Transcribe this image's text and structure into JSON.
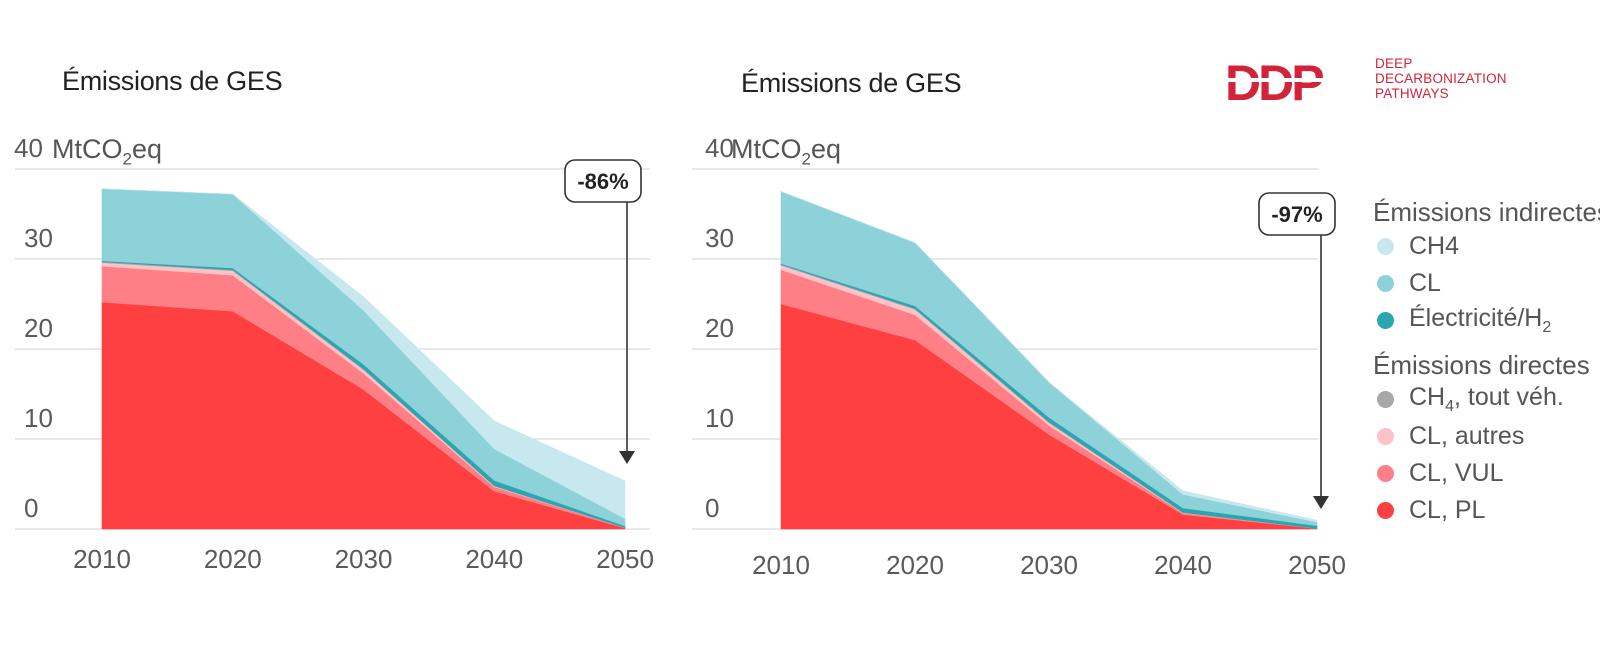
{
  "logo": {
    "mark": "DDP",
    "lines": [
      "DEEP",
      "DECARBONIZATION",
      "PATHWAYS"
    ]
  },
  "legend": {
    "indirect_title": "Émissions indirectes",
    "indirect": [
      {
        "key": "ind_ch4",
        "label": "CH4",
        "color": "#c6e8ee"
      },
      {
        "key": "ind_cl",
        "label": "CL",
        "color": "#8dd1d9"
      },
      {
        "key": "ind_elec",
        "label_main": "Électricité/H",
        "label_sub": "2",
        "color": "#2aa6b0"
      }
    ],
    "direct_title": "Émissions directes",
    "direct": [
      {
        "key": "dir_ch4",
        "label_main": "CH",
        "label_sub": "4",
        "label_rest": ", tout véh.",
        "color": "#a8a8a8"
      },
      {
        "key": "dir_cl_autres",
        "label": "CL, autres",
        "color": "#ffc2c6"
      },
      {
        "key": "dir_cl_vul",
        "label": "CL, VUL",
        "color": "#ff7f86"
      },
      {
        "key": "dir_cl_pl",
        "label": "CL, PL",
        "color": "#ff4040"
      }
    ]
  },
  "chart_data": [
    {
      "type": "area",
      "stacked": true,
      "title": "Émissions de GES",
      "unit_main": "MtCO",
      "unit_sub": "2",
      "unit_rest": "eq",
      "ylim": [
        0,
        40
      ],
      "y_ticks": [
        "0",
        "10",
        "20",
        "30",
        "40"
      ],
      "x": [
        2010,
        2020,
        2030,
        2040,
        2050
      ],
      "x_labels": [
        "2010",
        "2020",
        "2030",
        "2040",
        "2050"
      ],
      "series": [
        {
          "name": "CL, PL",
          "key": "dir_cl_pl",
          "values": [
            25.2,
            24.2,
            15.5,
            4.2,
            0.1
          ]
        },
        {
          "name": "CL, VUL",
          "key": "dir_cl_vul",
          "values": [
            4.0,
            4.0,
            1.8,
            0.5,
            0.05
          ]
        },
        {
          "name": "CL, autres",
          "key": "dir_cl_autres",
          "values": [
            0.4,
            0.5,
            0.4,
            0.1,
            0.0
          ]
        },
        {
          "name": "CH4, tout véh.",
          "key": "dir_ch4",
          "values": [
            0.1,
            0.1,
            0.1,
            0.0,
            0.0
          ]
        },
        {
          "name": "Électricité/H2",
          "key": "ind_elec",
          "values": [
            0.1,
            0.2,
            0.5,
            0.6,
            0.2
          ]
        },
        {
          "name": "CL",
          "key": "ind_cl",
          "values": [
            8.0,
            8.2,
            6.0,
            3.5,
            0.8
          ]
        },
        {
          "name": "CH4",
          "key": "ind_ch4",
          "values": [
            0.0,
            0.0,
            1.5,
            3.1,
            4.2
          ]
        }
      ],
      "callout": "-86%"
    },
    {
      "type": "area",
      "stacked": true,
      "title": "Émissions de GES",
      "unit_main": "MtCO",
      "unit_sub": "2",
      "unit_rest": "eq",
      "ylim": [
        0,
        40
      ],
      "y_ticks": [
        "0",
        "10",
        "20",
        "30",
        "40"
      ],
      "x": [
        2010,
        2020,
        2030,
        2040,
        2050
      ],
      "x_labels": [
        "2010",
        "2020",
        "2030",
        "2040",
        "2050"
      ],
      "series": [
        {
          "name": "CL, PL",
          "key": "dir_cl_pl",
          "values": [
            25.0,
            21.0,
            10.5,
            1.6,
            0.05
          ]
        },
        {
          "name": "CL, VUL",
          "key": "dir_cl_vul",
          "values": [
            3.8,
            2.8,
            1.0,
            0.2,
            0.02
          ]
        },
        {
          "name": "CL, autres",
          "key": "dir_cl_autres",
          "values": [
            0.5,
            0.6,
            0.3,
            0.05,
            0.0
          ]
        },
        {
          "name": "CH4, tout véh.",
          "key": "dir_ch4",
          "values": [
            0.1,
            0.1,
            0.1,
            0.0,
            0.0
          ]
        },
        {
          "name": "Électricité/H2",
          "key": "ind_elec",
          "values": [
            0.1,
            0.3,
            0.5,
            0.5,
            0.3
          ]
        },
        {
          "name": "CL",
          "key": "ind_cl",
          "values": [
            8.0,
            7.0,
            3.9,
            1.5,
            0.4
          ]
        },
        {
          "name": "CH4",
          "key": "ind_ch4",
          "values": [
            0.0,
            0.0,
            0.0,
            0.4,
            0.2
          ]
        }
      ],
      "callout": "-97%"
    }
  ]
}
